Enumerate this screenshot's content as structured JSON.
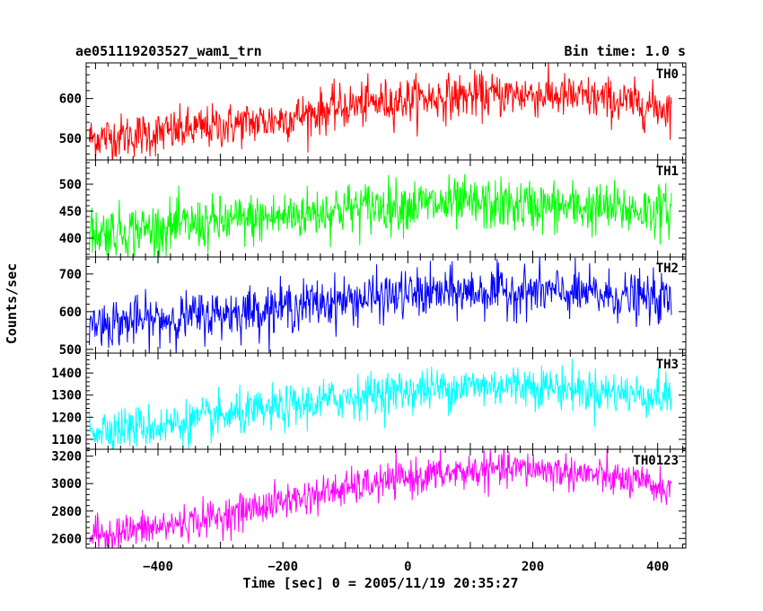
{
  "chart_data": {
    "type": "line",
    "title_left": "ae051119203527_wam1_trn",
    "title_right": "Bin time: 1.0 s",
    "xlabel": "Time [sec] 0 = 2005/11/19 20:35:27",
    "ylabel": "Counts/sec",
    "xlim": [
      -515,
      445
    ],
    "data_x_range": [
      -510,
      422
    ],
    "x_ticks": [
      -400,
      -200,
      0,
      200,
      400
    ],
    "x_tick_labels": [
      "−400",
      "−200",
      "0",
      "200",
      "400"
    ],
    "grid": false,
    "panels": [
      {
        "name": "TH0",
        "color": "#ff0000",
        "ylim": [
          445,
          690
        ],
        "y_ticks": [
          500,
          600
        ],
        "y_tick_labels": [
          "500",
          "600"
        ],
        "trend": {
          "x": [
            -510,
            -400,
            -200,
            -100,
            0,
            100,
            200,
            300,
            422
          ],
          "y": [
            500,
            512,
            548,
            580,
            598,
            607,
            611,
            600,
            575
          ]
        },
        "noise_sd": 28
      },
      {
        "name": "TH1",
        "color": "#00ff00",
        "ylim": [
          365,
          545
        ],
        "y_ticks": [
          400,
          450,
          500
        ],
        "y_tick_labels": [
          "400",
          "450",
          "500"
        ],
        "trend": {
          "x": [
            -510,
            -400,
            -200,
            -100,
            0,
            100,
            200,
            300,
            422
          ],
          "y": [
            410,
            418,
            440,
            455,
            462,
            462,
            460,
            455,
            450
          ]
        },
        "noise_sd": 24
      },
      {
        "name": "TH2",
        "color": "#0000ff",
        "ylim": [
          490,
          745
        ],
        "y_ticks": [
          500,
          600,
          700
        ],
        "y_tick_labels": [
          "500",
          "600",
          "700"
        ],
        "trend": {
          "x": [
            -510,
            -400,
            -200,
            -100,
            0,
            100,
            200,
            300,
            422
          ],
          "y": [
            568,
            578,
            612,
            630,
            645,
            652,
            654,
            645,
            630
          ]
        },
        "noise_sd": 32
      },
      {
        "name": "TH3",
        "color": "#00ffff",
        "ylim": [
          1055,
          1490
        ],
        "y_ticks": [
          1100,
          1200,
          1300,
          1400
        ],
        "y_tick_labels": [
          "1100",
          "1200",
          "1300",
          "1400"
        ],
        "trend": {
          "x": [
            -510,
            -400,
            -200,
            -100,
            0,
            100,
            200,
            300,
            422
          ],
          "y": [
            1145,
            1160,
            1240,
            1290,
            1320,
            1340,
            1345,
            1320,
            1290
          ]
        },
        "noise_sd": 48
      },
      {
        "name": "TH0123",
        "color": "#ff00ff",
        "ylim": [
          2530,
          3250
        ],
        "y_ticks": [
          2600,
          2800,
          3000,
          3200
        ],
        "y_tick_labels": [
          "2600",
          "2800",
          "3000",
          "3200"
        ],
        "trend": {
          "x": [
            -510,
            -400,
            -300,
            -200,
            -100,
            0,
            100,
            200,
            300,
            422
          ],
          "y": [
            2620,
            2680,
            2760,
            2870,
            2960,
            3040,
            3090,
            3110,
            3060,
            2960
          ]
        },
        "noise_sd": 65
      }
    ]
  }
}
